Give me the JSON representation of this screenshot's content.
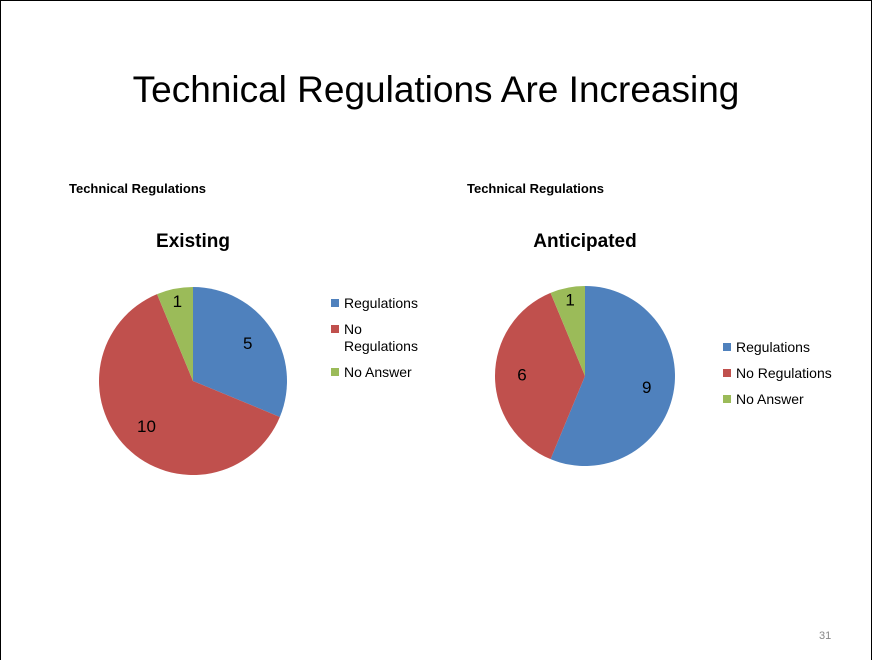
{
  "title": "Technical Regulations Are Increasing",
  "page_number": "31",
  "chart_data": [
    {
      "type": "pie",
      "caption": "Technical Regulations",
      "title": "Existing",
      "categories": [
        "Regulations",
        "No Regulations",
        "No Answer"
      ],
      "values": [
        5,
        10,
        1
      ],
      "colors": [
        "#4f81bd",
        "#c0504d",
        "#9bbb59"
      ],
      "legend": "right"
    },
    {
      "type": "pie",
      "caption": "Technical Regulations",
      "title": "Anticipated",
      "categories": [
        "Regulations",
        "No Regulations",
        "No Answer"
      ],
      "values": [
        9,
        6,
        1
      ],
      "colors": [
        "#4f81bd",
        "#c0504d",
        "#9bbb59"
      ],
      "legend": "right"
    }
  ]
}
